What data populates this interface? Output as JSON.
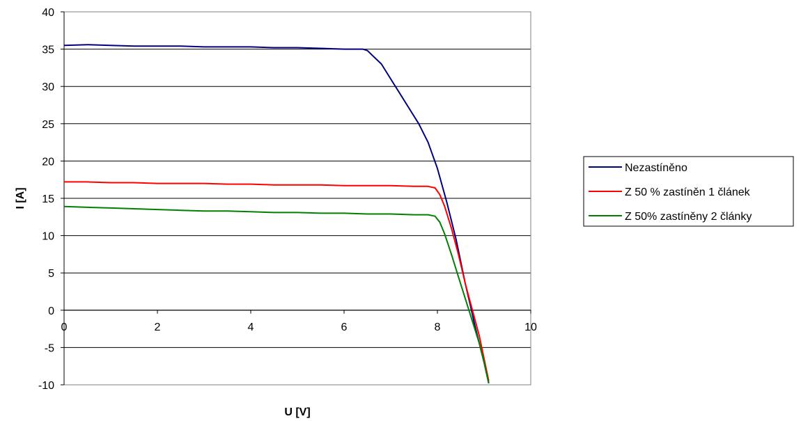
{
  "chart_data": {
    "type": "line",
    "title": "",
    "xlabel": "U [V]",
    "ylabel": "I [A]",
    "xlim": [
      0,
      10
    ],
    "ylim": [
      -10,
      40
    ],
    "xticks": [
      0,
      2,
      4,
      6,
      8,
      10
    ],
    "yticks": [
      -10,
      -5,
      0,
      5,
      10,
      15,
      20,
      25,
      30,
      35,
      40
    ],
    "grid": "horizontal",
    "legend": "right",
    "series": [
      {
        "name": "Nezastíněno",
        "color": "#00007f",
        "x": [
          0,
          0.5,
          1,
          1.5,
          2,
          2.5,
          3,
          3.5,
          4,
          4.5,
          5,
          5.5,
          6,
          6.2,
          6.4,
          6.5,
          6.6,
          6.8,
          7.0,
          7.2,
          7.4,
          7.6,
          7.8,
          8.0,
          8.2,
          8.4,
          8.5,
          8.6,
          8.7,
          8.8,
          8.9,
          9.0,
          9.1
        ],
        "y": [
          35.5,
          35.6,
          35.5,
          35.4,
          35.4,
          35.4,
          35.3,
          35.3,
          35.3,
          35.2,
          35.2,
          35.1,
          35.0,
          35.0,
          35.0,
          34.8,
          34.2,
          33.0,
          31.0,
          29.0,
          27.0,
          25.0,
          22.5,
          19.0,
          14.5,
          9.5,
          6.5,
          3.5,
          0.8,
          -2.0,
          -4.5,
          -7.0,
          -9.8
        ]
      },
      {
        "name": "Z 50 % zastíněn 1 článek",
        "color": "#ff0000",
        "x": [
          0,
          0.5,
          1,
          1.5,
          2,
          2.5,
          3,
          3.5,
          4,
          4.5,
          5,
          5.5,
          6,
          6.5,
          7,
          7.5,
          7.8,
          7.95,
          8.05,
          8.15,
          8.3,
          8.45,
          8.6,
          8.75,
          8.9,
          9.0,
          9.1
        ],
        "y": [
          17.2,
          17.2,
          17.1,
          17.1,
          17.0,
          17.0,
          17.0,
          16.9,
          16.9,
          16.8,
          16.8,
          16.8,
          16.7,
          16.7,
          16.7,
          16.6,
          16.6,
          16.4,
          15.5,
          14.0,
          11.0,
          7.5,
          3.5,
          0.0,
          -3.5,
          -6.5,
          -9.5
        ]
      },
      {
        "name": "Z 50% zastíněny 2 články",
        "color": "#008000",
        "x": [
          0,
          0.5,
          1,
          1.5,
          2,
          2.5,
          3,
          3.5,
          4,
          4.5,
          5,
          5.5,
          6,
          6.5,
          7,
          7.5,
          7.8,
          7.95,
          8.05,
          8.15,
          8.3,
          8.45,
          8.6,
          8.75,
          8.9,
          9.0,
          9.1
        ],
        "y": [
          13.9,
          13.8,
          13.7,
          13.6,
          13.5,
          13.4,
          13.3,
          13.3,
          13.2,
          13.1,
          13.1,
          13.0,
          13.0,
          12.9,
          12.9,
          12.8,
          12.8,
          12.6,
          11.8,
          10.3,
          7.5,
          4.5,
          1.5,
          -1.5,
          -4.5,
          -7.0,
          -9.8
        ]
      }
    ]
  }
}
